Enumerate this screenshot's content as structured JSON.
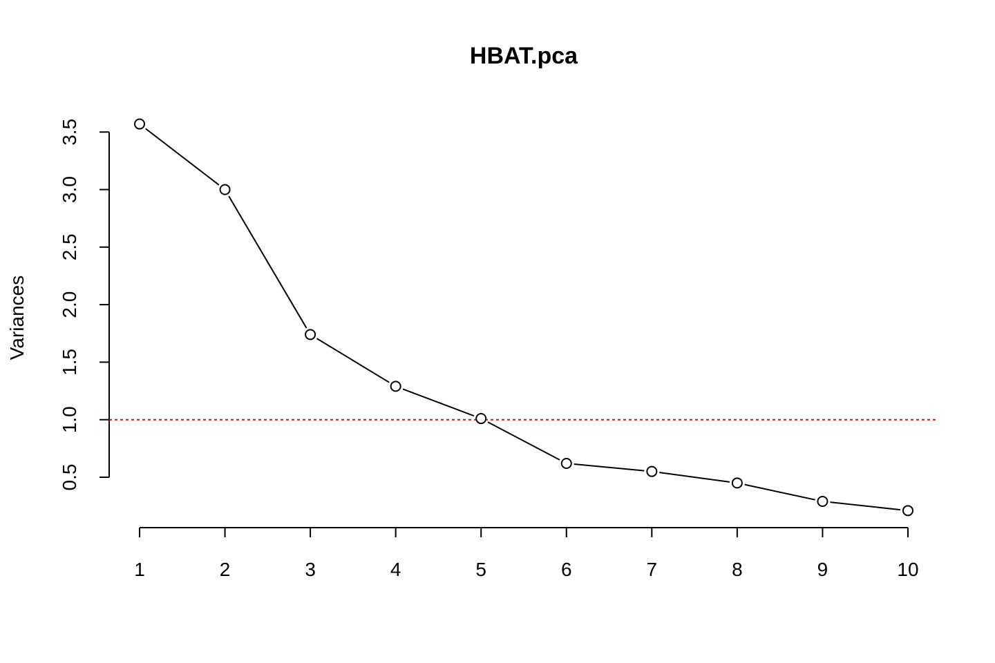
{
  "chart_data": {
    "type": "line",
    "title": "HBAT.pca",
    "xlabel": "",
    "ylabel": "Variances",
    "x": [
      "1",
      "2",
      "3",
      "4",
      "5",
      "6",
      "7",
      "8",
      "9",
      "10"
    ],
    "series": [
      {
        "values": [
          3.57,
          3.0,
          1.74,
          1.29,
          1.01,
          0.62,
          0.55,
          0.45,
          0.29,
          0.21
        ]
      }
    ],
    "yticks": [
      "0.5",
      "1.0",
      "1.5",
      "2.0",
      "2.5",
      "3.0",
      "3.5"
    ],
    "ylim": [
      0.5,
      3.5
    ],
    "reference_line": {
      "y": 1.0,
      "style": "dotted",
      "color": "#ff0000"
    },
    "marker": "open-circle",
    "grid": false,
    "legend": "none"
  }
}
